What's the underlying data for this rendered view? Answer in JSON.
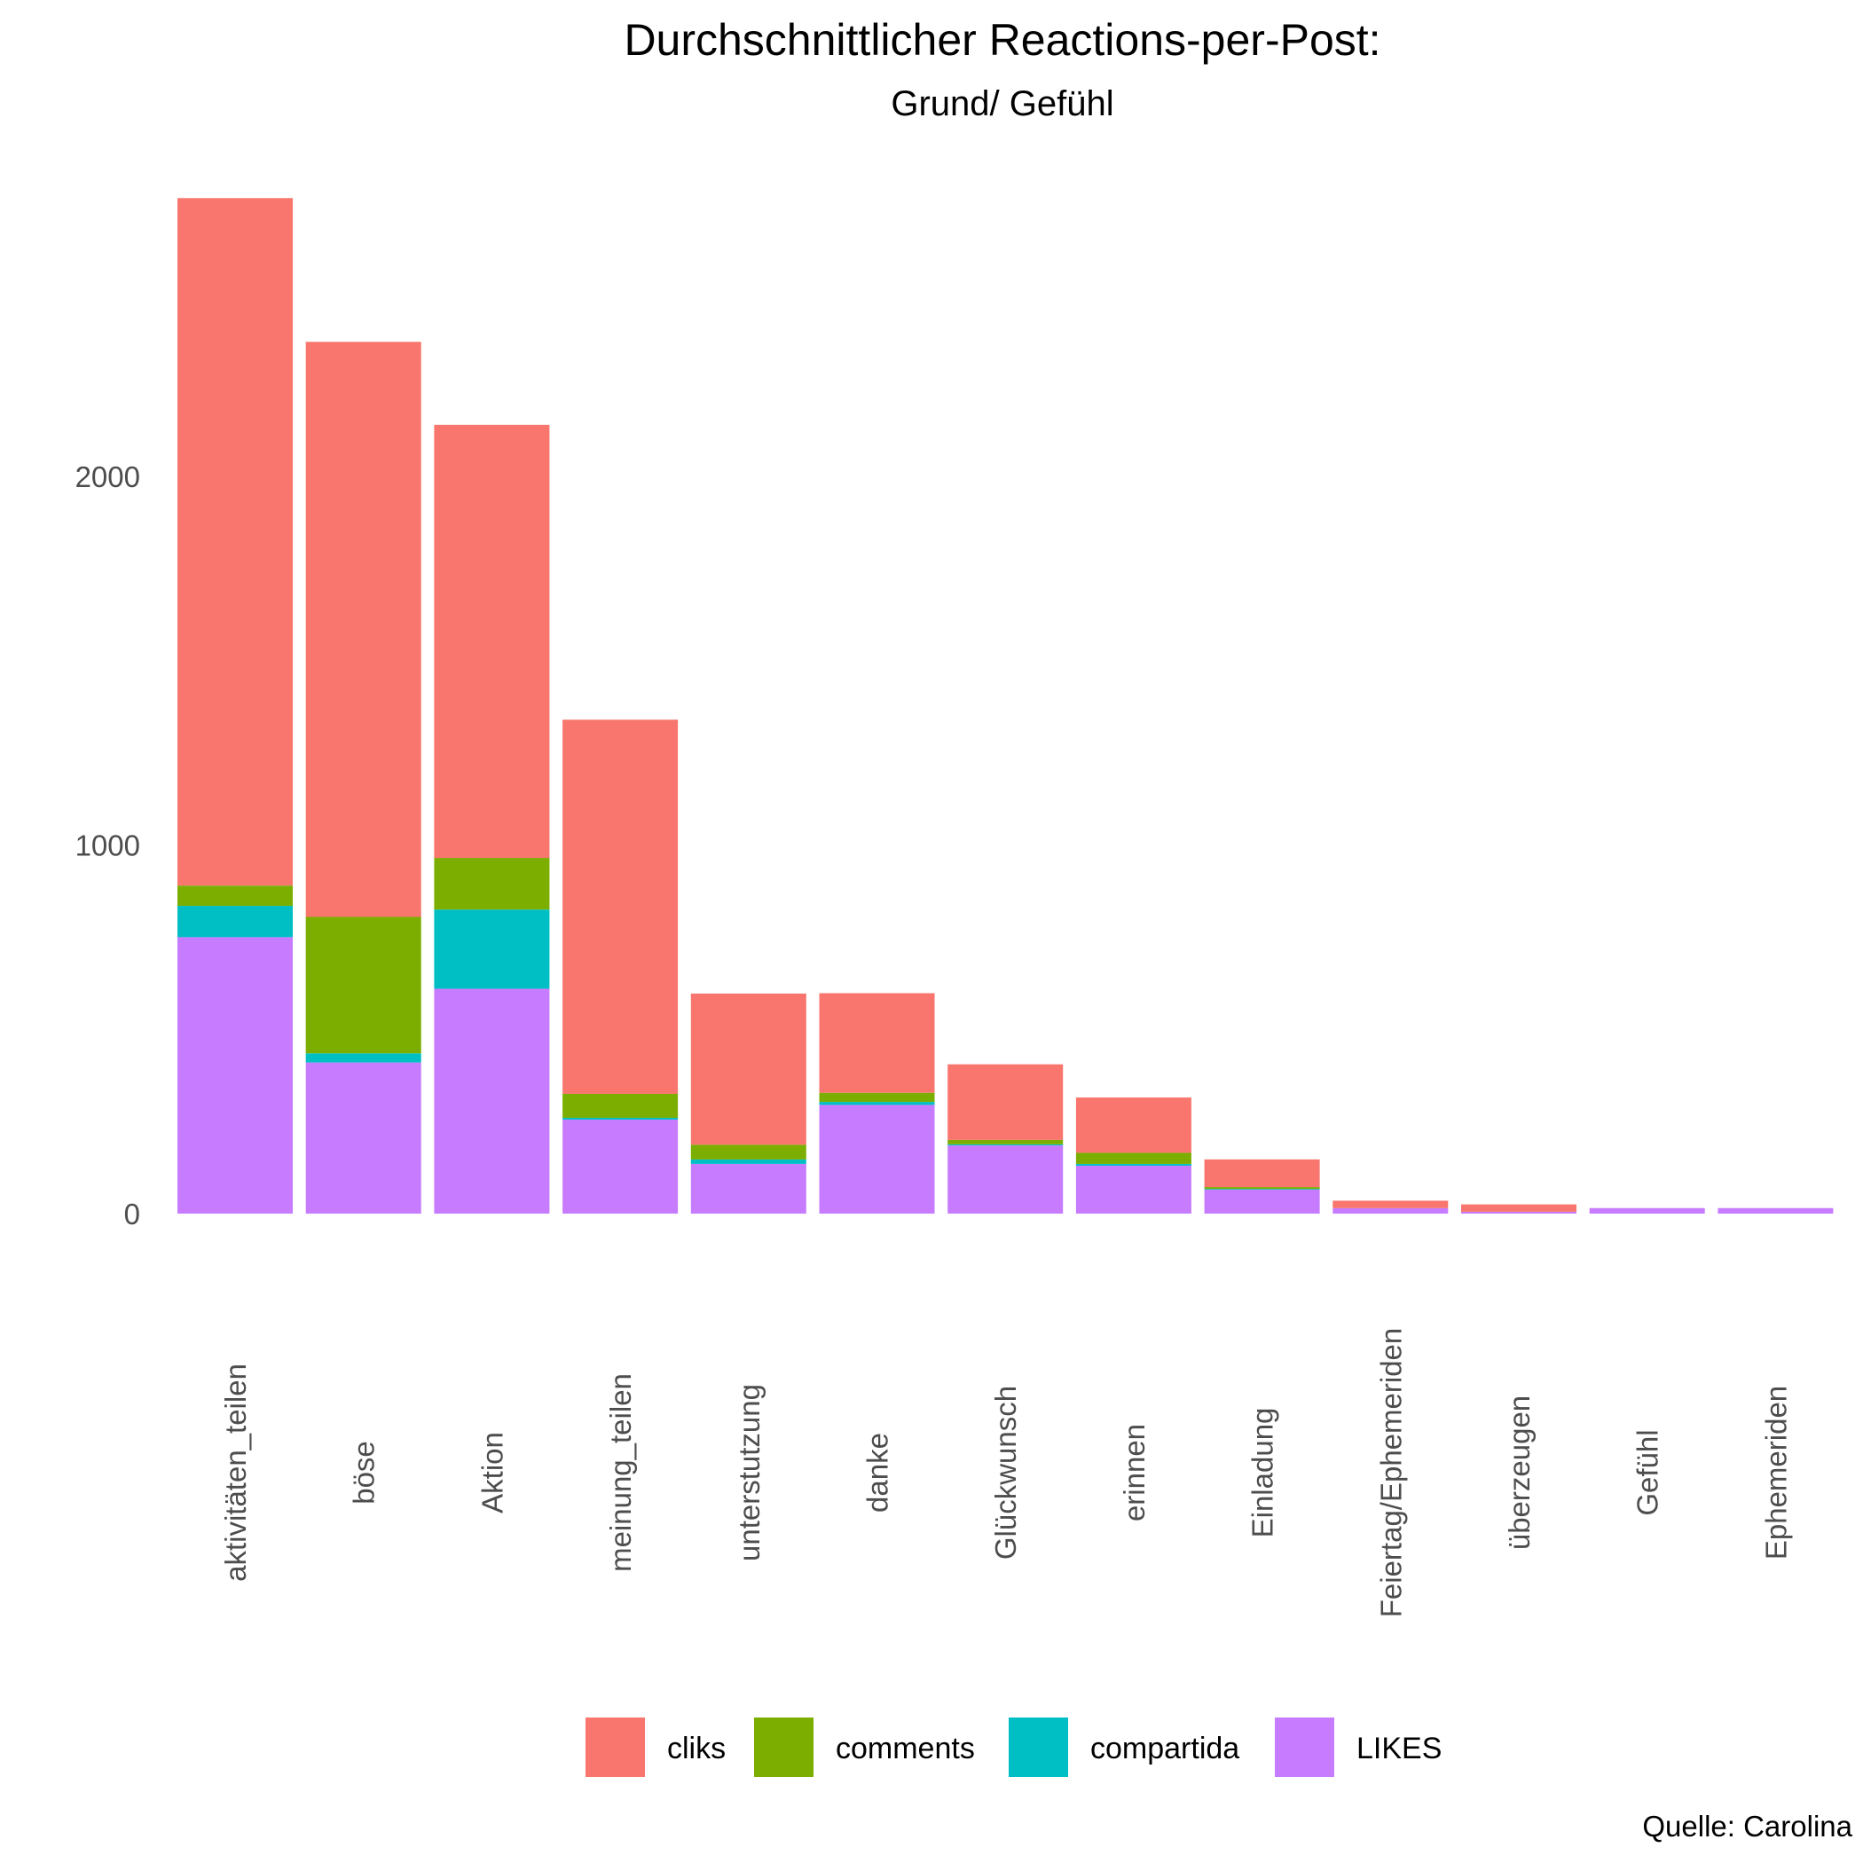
{
  "chart_data": {
    "type": "bar",
    "stacked": true,
    "title": "Durchschnittlicher Reactions-per-Post:",
    "subtitle": "Grund/ Gefühl",
    "caption": "Quelle: Carolina",
    "xlabel": "",
    "ylabel": "",
    "ylim": [
      0,
      2800
    ],
    "yticks": [
      0,
      1000,
      2000
    ],
    "grid": false,
    "legend_position": "bottom",
    "categories": [
      "aktivitäten_teilen",
      "böse",
      "Aktion",
      "meinung_teilen",
      "unterstutzung",
      "danke",
      "Glückwunsch",
      "erinnen",
      "Einladung",
      "Feiertag/Ephemeriden",
      "überzeugen",
      "Gefühl",
      "Ephemeriden"
    ],
    "series": [
      {
        "name": "LIKES",
        "color": "#C77CFF",
        "values": [
          750,
          410,
          610,
          255,
          135,
          295,
          185,
          130,
          65,
          15,
          5,
          15,
          15
        ]
      },
      {
        "name": "compartida",
        "color": "#00BFC4",
        "values": [
          85,
          25,
          215,
          5,
          12,
          8,
          3,
          5,
          2,
          0,
          0,
          0,
          0
        ]
      },
      {
        "name": "comments",
        "color": "#7CAE00",
        "values": [
          55,
          370,
          140,
          65,
          40,
          25,
          12,
          30,
          5,
          0,
          0,
          0,
          0
        ]
      },
      {
        "name": "cliks",
        "color": "#F8766D",
        "values": [
          1865,
          1560,
          1175,
          1015,
          410,
          270,
          205,
          150,
          75,
          20,
          20,
          0,
          0
        ]
      }
    ],
    "legend_order": [
      "cliks",
      "comments",
      "compartida",
      "LIKES"
    ]
  }
}
